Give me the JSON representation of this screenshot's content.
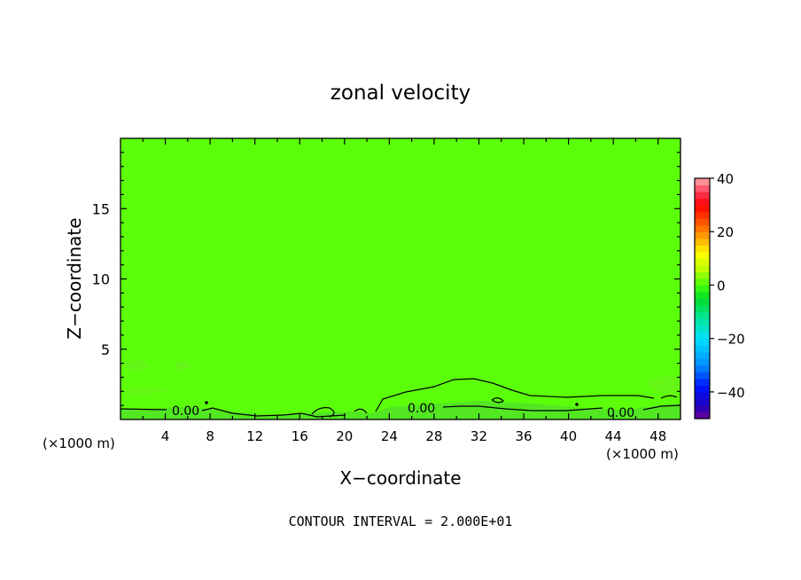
{
  "chart_data": {
    "type": "heatmap",
    "title": "zonal velocity",
    "xlabel": "X−coordinate",
    "ylabel": "Z−coordinate",
    "x_unit": "(×1000 m)",
    "x_unit_right": "(×1000 m)",
    "xlim": [
      0,
      50
    ],
    "ylim": [
      0,
      20
    ],
    "x_ticks": [
      "4",
      "8",
      "12",
      "16",
      "20",
      "24",
      "28",
      "32",
      "36",
      "40",
      "44",
      "48"
    ],
    "y_ticks": [
      "5",
      "10",
      "15"
    ],
    "field_value": "0",
    "colorbar": {
      "ticks": [
        "40",
        "20",
        "0",
        "−20",
        "−40"
      ],
      "min": -50,
      "max": 40
    },
    "contour_labels": [
      "0.00",
      "0.00",
      "0.00"
    ],
    "contour_interval_text": "CONTOUR INTERVAL = 2.000E+01",
    "colors": {
      "field": "#5cff0a",
      "field_near_surface": "#52e623"
    }
  }
}
